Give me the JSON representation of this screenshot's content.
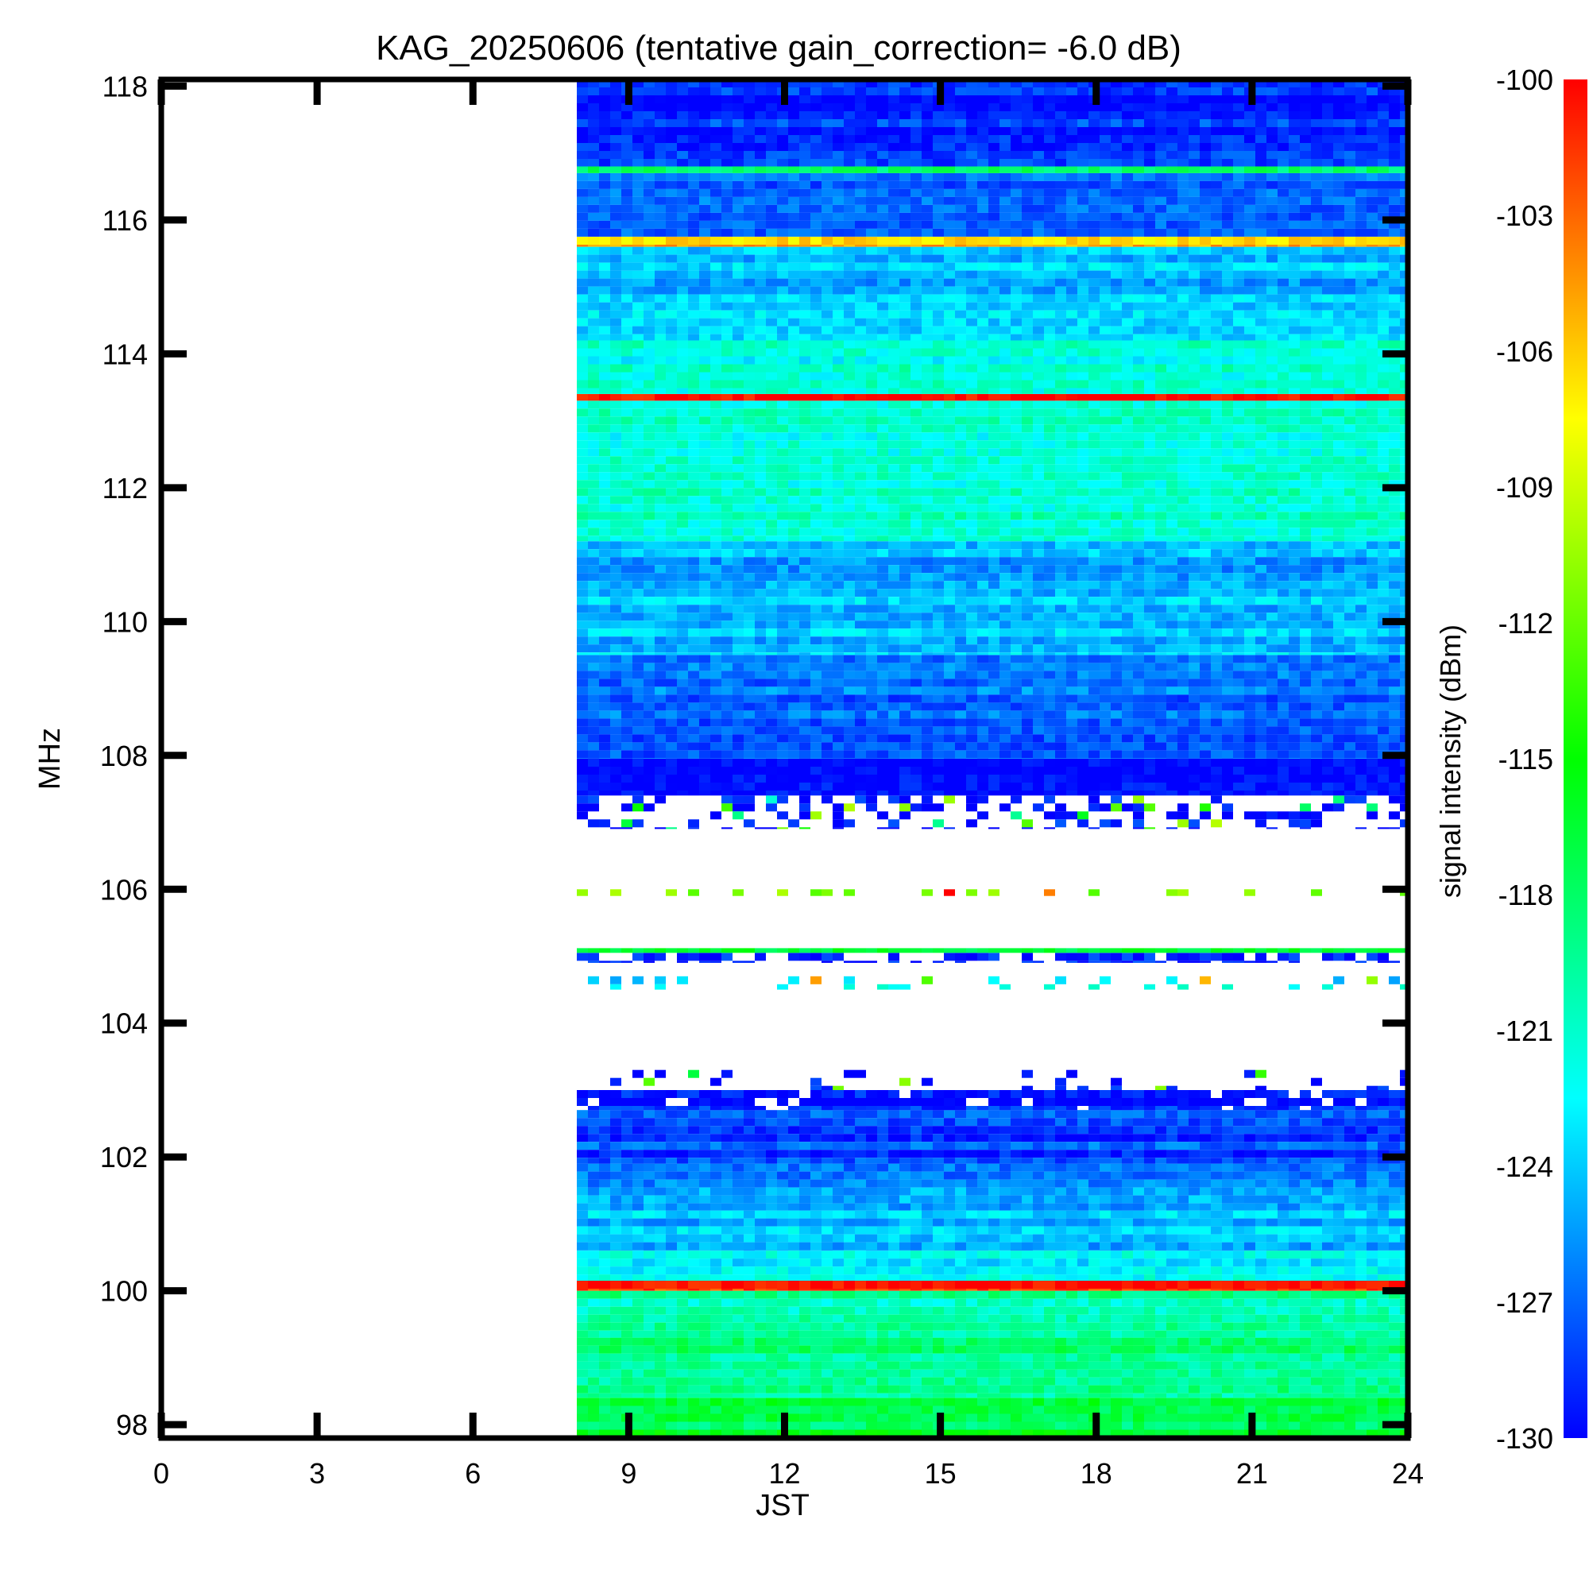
{
  "chart_data": {
    "type": "heatmap",
    "title": "KAG_20250606 (tentative gain_correction= -6.0 dB)",
    "xlabel": "JST",
    "ylabel": "MHz",
    "xlim": [
      0,
      24
    ],
    "ylim": [
      97.8,
      118.1
    ],
    "x_ticks": [
      "0",
      "3",
      "6",
      "9",
      "12",
      "15",
      "18",
      "21",
      "24"
    ],
    "y_ticks": [
      "98",
      "100",
      "102",
      "104",
      "106",
      "108",
      "110",
      "112",
      "114",
      "116",
      "118"
    ],
    "data_start_hour": 8.0,
    "colorbar": {
      "label": "signal intensity (dBm)",
      "range": [
        -130,
        -100
      ],
      "ticks": [
        "-100",
        "-103",
        "-106",
        "-109",
        "-112",
        "-115",
        "-118",
        "-121",
        "-124",
        "-127",
        "-130"
      ],
      "colormap": [
        "#0000ff",
        "#00ffff",
        "#00ff00",
        "#ffff00",
        "#ff0000"
      ]
    },
    "bands": [
      {
        "f0": 97.8,
        "f1": 98.4,
        "dbm": -117,
        "density": 1.0
      },
      {
        "f0": 98.4,
        "f1": 99.3,
        "dbm": -119,
        "density": 1.0
      },
      {
        "f0": 99.3,
        "f1": 100.0,
        "dbm": -120,
        "density": 1.0
      },
      {
        "f0": 100.0,
        "f1": 100.15,
        "dbm": -101,
        "density": 1.0
      },
      {
        "f0": 100.15,
        "f1": 100.6,
        "dbm": -123,
        "density": 1.0
      },
      {
        "f0": 100.6,
        "f1": 101.2,
        "dbm": -124.5,
        "density": 1.0
      },
      {
        "f0": 101.2,
        "f1": 101.9,
        "dbm": -126,
        "density": 1.0
      },
      {
        "f0": 101.9,
        "f1": 102.7,
        "dbm": -128,
        "density": 1.0
      },
      {
        "f0": 102.7,
        "f1": 103.0,
        "dbm": -129.5,
        "density": 0.85
      },
      {
        "f0": 103.0,
        "f1": 103.3,
        "dbm": -129.5,
        "density": 0.2
      },
      {
        "f0": 104.5,
        "f1": 104.7,
        "dbm": -123,
        "density": 0.25
      },
      {
        "f0": 104.9,
        "f1": 105.05,
        "dbm": -129,
        "density": 0.6
      },
      {
        "f0": 105.05,
        "f1": 105.12,
        "dbm": -117,
        "density": 1.0
      },
      {
        "f0": 105.9,
        "f1": 106.0,
        "dbm": -112,
        "density": 0.3
      },
      {
        "f0": 106.9,
        "f1": 107.4,
        "dbm": -129.5,
        "density": 0.35
      },
      {
        "f0": 107.4,
        "f1": 107.95,
        "dbm": -129,
        "density": 1.0
      },
      {
        "f0": 107.95,
        "f1": 109.5,
        "dbm": -127,
        "density": 1.0
      },
      {
        "f0": 109.5,
        "f1": 111.2,
        "dbm": -124.5,
        "density": 1.0
      },
      {
        "f0": 111.2,
        "f1": 113.3,
        "dbm": -121,
        "density": 1.0
      },
      {
        "f0": 113.3,
        "f1": 113.4,
        "dbm": -100,
        "density": 1.0
      },
      {
        "f0": 113.4,
        "f1": 114.2,
        "dbm": -121.5,
        "density": 1.0
      },
      {
        "f0": 114.2,
        "f1": 115.6,
        "dbm": -124.5,
        "density": 1.0
      },
      {
        "f0": 115.6,
        "f1": 115.75,
        "dbm": -106,
        "density": 1.0
      },
      {
        "f0": 115.75,
        "f1": 116.7,
        "dbm": -127,
        "density": 1.0
      },
      {
        "f0": 116.7,
        "f1": 116.8,
        "dbm": -117,
        "density": 1.0
      },
      {
        "f0": 116.8,
        "f1": 118.1,
        "dbm": -129,
        "density": 1.0
      }
    ]
  }
}
